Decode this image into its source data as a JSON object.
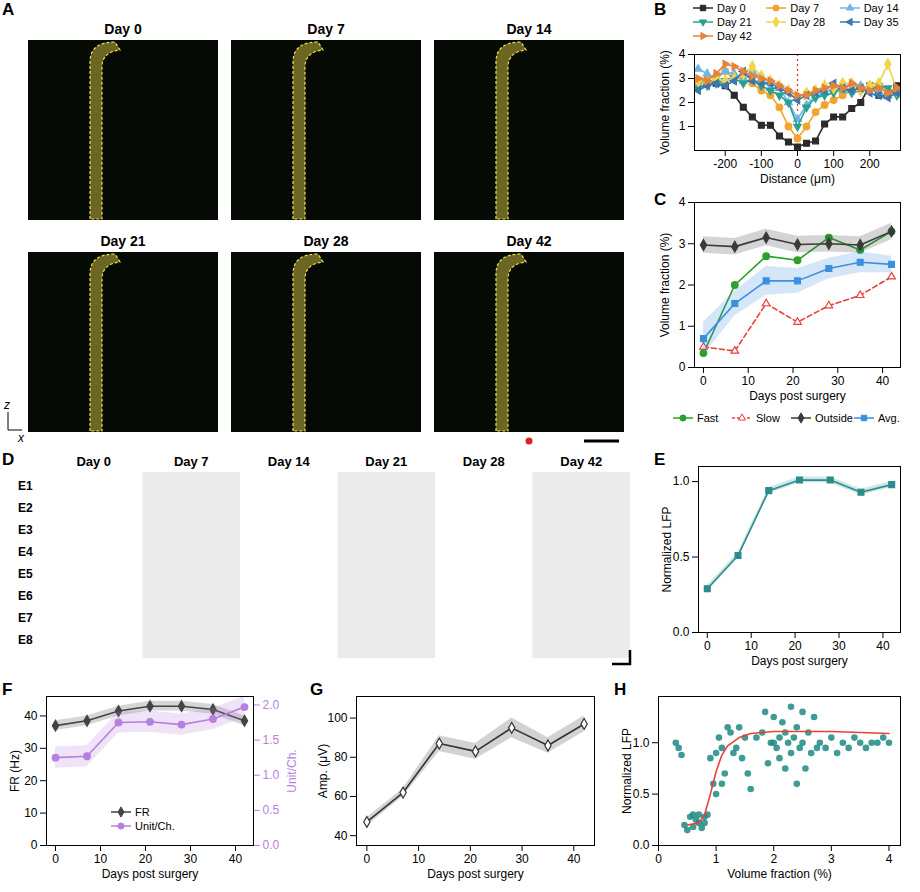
{
  "chart_data": [
    {
      "panel": "A",
      "type": "image_grid",
      "titles": [
        "Day 0",
        "Day 7",
        "Day 14",
        "Day 21",
        "Day 28",
        "Day 42"
      ],
      "xlabel": "x",
      "ylabel": "z"
    },
    {
      "panel": "B",
      "type": "line",
      "x": [
        -275,
        -250,
        -225,
        -200,
        -175,
        -150,
        -125,
        -100,
        -75,
        -50,
        -25,
        0,
        25,
        50,
        75,
        100,
        125,
        150,
        175,
        200,
        225,
        250,
        275
      ],
      "series": [
        {
          "name": "Day 0",
          "color": "#2b2b2b",
          "marker": "square",
          "values": [
            2.9,
            2.8,
            2.8,
            2.7,
            2.3,
            1.8,
            1.4,
            1.05,
            1.05,
            0.6,
            0.35,
            0.15,
            0.3,
            0.4,
            1.1,
            1.4,
            1.4,
            1.75,
            2.0,
            2.7,
            2.3,
            2.3,
            2.7
          ]
        },
        {
          "name": "Day 7",
          "color": "#f2a52e",
          "marker": "circle",
          "values": [
            2.9,
            3.0,
            3.1,
            3.3,
            3.0,
            3.0,
            2.8,
            2.5,
            2.3,
            1.8,
            1.0,
            0.5,
            1.0,
            1.6,
            1.9,
            2.1,
            2.3,
            2.5,
            2.6,
            2.7,
            2.6,
            2.5,
            2.5
          ]
        },
        {
          "name": "Day 14",
          "color": "#6db6e6",
          "marker": "triangle",
          "values": [
            3.4,
            3.2,
            3.0,
            3.3,
            3.2,
            2.9,
            3.3,
            3.0,
            2.6,
            2.6,
            2.0,
            1.3,
            1.9,
            2.3,
            2.4,
            2.6,
            2.5,
            2.8,
            2.7,
            2.6,
            2.4,
            2.3,
            2.5
          ]
        },
        {
          "name": "Day 21",
          "color": "#2aa08f",
          "marker": "triangle-down",
          "values": [
            2.6,
            2.7,
            2.8,
            2.9,
            3.0,
            2.8,
            3.0,
            2.7,
            2.5,
            2.3,
            2.0,
            1.0,
            1.8,
            2.2,
            2.3,
            2.4,
            2.6,
            2.4,
            2.5,
            2.5,
            2.7,
            2.6,
            2.3
          ]
        },
        {
          "name": "Day 28",
          "color": "#f0d54a",
          "marker": "diamond",
          "values": [
            2.9,
            2.8,
            3.0,
            2.9,
            3.0,
            3.2,
            3.5,
            3.1,
            2.9,
            2.7,
            2.5,
            2.2,
            2.4,
            2.5,
            2.7,
            2.6,
            2.8,
            2.8,
            2.5,
            2.7,
            2.8,
            3.6,
            2.5
          ]
        },
        {
          "name": "Day 35",
          "color": "#3a78b0",
          "marker": "triangle-left",
          "values": [
            2.5,
            2.7,
            2.8,
            2.7,
            2.9,
            3.3,
            2.9,
            2.8,
            2.8,
            2.6,
            2.4,
            2.1,
            2.3,
            2.4,
            2.5,
            2.8,
            2.6,
            2.5,
            2.6,
            2.4,
            2.3,
            2.2,
            2.4
          ]
        },
        {
          "name": "Day 42",
          "color": "#e5833a",
          "marker": "triangle-right",
          "values": [
            3.0,
            2.9,
            3.2,
            3.6,
            3.5,
            3.3,
            3.1,
            3.0,
            2.9,
            2.7,
            2.5,
            2.3,
            2.3,
            2.5,
            2.6,
            2.7,
            2.6,
            2.8,
            2.6,
            2.5,
            2.6,
            2.4,
            2.6
          ]
        }
      ],
      "reference_x": 0,
      "xlim": [
        -285,
        285
      ],
      "xticks": [
        -200,
        -100,
        0,
        100,
        200
      ],
      "ylim": [
        0,
        4
      ],
      "yticks": [
        1,
        2,
        3,
        4
      ],
      "xlabel": "Distance (μm)",
      "ylabel": "Volume fraction (%)",
      "legend": "top"
    },
    {
      "panel": "C",
      "type": "line",
      "x": [
        0,
        7,
        14,
        21,
        28,
        35,
        42
      ],
      "series": [
        {
          "name": "Fast",
          "color": "#2ca02c",
          "marker": "circle",
          "values": [
            0.35,
            2.0,
            2.7,
            2.6,
            3.15,
            2.85,
            3.3
          ]
        },
        {
          "name": "Slow",
          "color": "#e8413a",
          "marker": "triangle-open",
          "line_style": "dashed",
          "values": [
            0.5,
            0.4,
            1.55,
            1.1,
            1.5,
            1.75,
            2.2
          ]
        },
        {
          "name": "Outside",
          "color": "#3a3a3a",
          "marker": "diamond",
          "values": [
            2.97,
            2.93,
            3.15,
            2.98,
            3.0,
            2.97,
            3.3
          ],
          "error": 0.2
        },
        {
          "name": "Avg.",
          "color": "#3d8fe0",
          "marker": "square",
          "values": [
            0.7,
            1.55,
            2.1,
            2.1,
            2.4,
            2.55,
            2.5
          ],
          "error": [
            0.4,
            0.3,
            0.35,
            0.3,
            0.25,
            0.25,
            0.2
          ]
        }
      ],
      "xlim": [
        -2,
        44
      ],
      "xticks": [
        0,
        10,
        20,
        30,
        40
      ],
      "ylim": [
        0,
        4
      ],
      "yticks": [
        0,
        1,
        2,
        3,
        4
      ],
      "xlabel": "Days post surgery",
      "ylabel": "Volume fraction (%)",
      "legend": "bottom"
    },
    {
      "panel": "D",
      "type": "traces",
      "columns": [
        "Day 0",
        "Day 7",
        "Day 14",
        "Day 21",
        "Day 28",
        "Day 42"
      ],
      "rows": [
        "E1",
        "E2",
        "E3",
        "E4",
        "E5",
        "E6",
        "E7",
        "E8"
      ]
    },
    {
      "panel": "E",
      "type": "line",
      "x": [
        0,
        7,
        14,
        21,
        28,
        35,
        42
      ],
      "values": [
        0.29,
        0.51,
        0.94,
        1.01,
        1.01,
        0.93,
        0.98
      ],
      "error": 0.02,
      "color": "#2a8c8c",
      "marker": "square",
      "xlim": [
        -2,
        44
      ],
      "xticks": [
        0,
        10,
        20,
        30,
        40
      ],
      "ylim": [
        0,
        1.1
      ],
      "yticks": [
        {
          "value": 0,
          "label": "0.0"
        },
        {
          "value": 0.5,
          "label": "0.5"
        },
        {
          "value": 1,
          "label": "1.0"
        }
      ],
      "xlabel": "Days post surgery",
      "ylabel": "Normalized LFP"
    },
    {
      "panel": "F",
      "type": "line",
      "x": [
        0,
        7,
        14,
        21,
        28,
        35,
        42
      ],
      "series": [
        {
          "name": "FR",
          "color": "#444444",
          "marker": "diamond",
          "values": [
            37,
            38.5,
            41.5,
            43,
            43,
            42,
            38.5
          ],
          "error": 1.5
        },
        {
          "name": "Unit/Ch.",
          "color": "#b77fe0",
          "marker": "circle",
          "axis": "y2",
          "values": [
            1.25,
            1.27,
            1.75,
            1.76,
            1.72,
            1.8,
            1.97
          ],
          "error": 0.15
        }
      ],
      "xlim": [
        -2,
        44
      ],
      "xticks": [
        0,
        10,
        20,
        30,
        40
      ],
      "ylim": [
        0,
        46
      ],
      "yticks": [
        0,
        10,
        20,
        30,
        40
      ],
      "y2lim": [
        0,
        2.12
      ],
      "y2ticks": [
        {
          "value": 0,
          "label": "0.0"
        },
        {
          "value": 0.5,
          "label": "0.5"
        },
        {
          "value": 1,
          "label": "1.0"
        },
        {
          "value": 1.5,
          "label": "1.5"
        },
        {
          "value": 2,
          "label": "2.0"
        }
      ],
      "xlabel": "Days post surgery",
      "ylabel": "FR (Hz)",
      "y2label": "Unit/Ch.",
      "legend": "bottom"
    },
    {
      "panel": "G",
      "type": "line",
      "x": [
        0,
        7,
        14,
        21,
        28,
        35,
        42
      ],
      "values": [
        47,
        62,
        87,
        83,
        95,
        86,
        97
      ],
      "error": [
        2,
        2,
        4,
        4,
        5,
        4,
        4
      ],
      "color": "#333333",
      "marker": "diamond-open",
      "xlim": [
        -2,
        44
      ],
      "xticks": [
        0,
        10,
        20,
        30,
        40
      ],
      "ylim": [
        35,
        111
      ],
      "yticks": [
        40,
        60,
        80,
        100
      ],
      "xlabel": "Days post surgery",
      "ylabel": "Amp. (μV)"
    },
    {
      "panel": "H",
      "type": "scatter",
      "series": [
        {
          "type": "scatter",
          "color": "#1f8a84",
          "x": [
            0.3,
            0.35,
            0.4,
            0.45,
            0.5,
            0.55,
            0.6,
            0.6,
            0.65,
            0.7,
            0.7,
            0.75,
            0.8,
            0.8,
            0.85,
            0.9,
            0.95,
            1.0,
            1.0,
            1.05,
            1.1,
            1.1,
            1.15,
            1.2,
            1.25,
            1.3,
            1.35,
            1.4,
            1.45,
            1.5,
            1.55,
            1.6,
            1.7,
            1.8,
            1.85,
            1.9,
            1.95,
            2.0,
            2.0,
            2.05,
            2.1,
            2.1,
            2.15,
            2.2,
            2.2,
            2.25,
            2.3,
            2.3,
            2.35,
            2.4,
            2.4,
            2.45,
            2.5,
            2.5,
            2.55,
            2.6,
            2.65,
            2.7,
            2.75,
            2.8,
            2.9,
            3.0,
            3.1,
            3.2,
            3.3,
            3.4,
            3.5,
            3.6,
            3.7,
            3.8,
            3.9,
            4.0
          ],
          "values": [
            1.0,
            0.95,
            0.88,
            0.2,
            0.15,
            0.28,
            0.3,
            0.18,
            0.25,
            0.22,
            0.3,
            0.17,
            0.28,
            0.22,
            0.3,
            0.85,
            0.6,
            0.9,
            0.5,
            1.05,
            0.95,
            0.6,
            0.7,
            1.15,
            1.1,
            0.9,
            0.95,
            1.15,
            0.85,
            1.05,
            0.7,
            0.55,
            1.05,
            1.1,
            1.3,
            0.8,
            1.0,
            1.0,
            1.25,
            0.95,
            1.05,
            0.85,
            1.2,
            0.75,
            1.1,
            1.0,
            0.9,
            1.35,
            1.05,
            0.6,
            1.15,
            0.95,
            1.0,
            1.3,
            0.75,
            1.1,
            0.9,
            1.25,
            0.95,
            1.0,
            0.95,
            1.05,
            0.9,
            1.0,
            0.95,
            1.05,
            1.0,
            0.95,
            1.0,
            1.0,
            1.05,
            1.0
          ]
        },
        {
          "type": "line",
          "color": "#e8413a",
          "x": [
            0.5,
            0.7,
            0.8,
            0.9,
            1.0,
            1.1,
            1.2,
            1.4,
            1.6,
            2.0,
            2.5,
            3.0,
            3.5,
            4.0
          ],
          "values": [
            0.2,
            0.22,
            0.3,
            0.5,
            0.72,
            0.88,
            0.97,
            1.05,
            1.09,
            1.11,
            1.11,
            1.11,
            1.1,
            1.09
          ]
        }
      ],
      "xlim": [
        0,
        4.2
      ],
      "xticks": [
        0,
        1,
        2,
        3,
        4
      ],
      "ylim": [
        0,
        1.45
      ],
      "yticks": [
        {
          "value": 0,
          "label": "0.0"
        },
        {
          "value": 0.5,
          "label": "0.5"
        },
        {
          "value": 1,
          "label": "1.0"
        }
      ],
      "xlabel": "Volume fraction (%)",
      "ylabel": "Normalized LFP"
    }
  ]
}
